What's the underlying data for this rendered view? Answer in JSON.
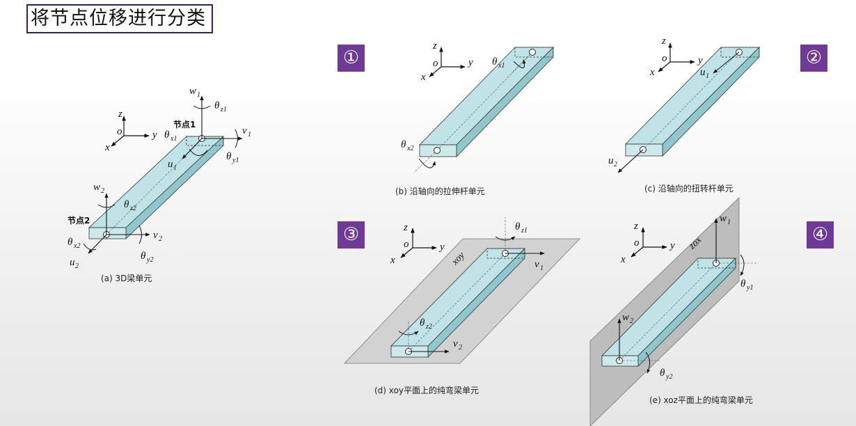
{
  "title": "将节点位移进行分类",
  "badges": [
    "①",
    "②",
    "③",
    "④"
  ],
  "captions": {
    "a": "(a) 3D梁单元",
    "b": "(b) 沿轴向的拉伸杆单元",
    "c": "(c) 沿轴向的扭转杆单元",
    "d": "(d) xoy平面上的纯弯梁单元",
    "e": "(e) xoz平面上的纯弯梁单元"
  },
  "node_labels": {
    "node1": "节点1",
    "node2": "节点2"
  },
  "plane_labels": {
    "xoy": "xoy",
    "zox": "zox"
  },
  "axis_labels": {
    "x": "x",
    "y": "y",
    "z": "z",
    "o": "o"
  },
  "symbols": {
    "theta": "θ",
    "w": "w",
    "u": "u",
    "v": "v",
    "sub_x1": "x1",
    "sub_x2": "x2",
    "sub_y1": "y1",
    "sub_y2": "y2",
    "sub_z1": "z1",
    "sub_z2": "z2",
    "sub_1": "1",
    "sub_2": "2"
  },
  "colors": {
    "beam_fill": "#bfe3e6",
    "beam_side": "#8fc7cc",
    "badge": "#6f3a96",
    "title_border": "#3b1d5e",
    "plane": "#c8c8c8"
  }
}
